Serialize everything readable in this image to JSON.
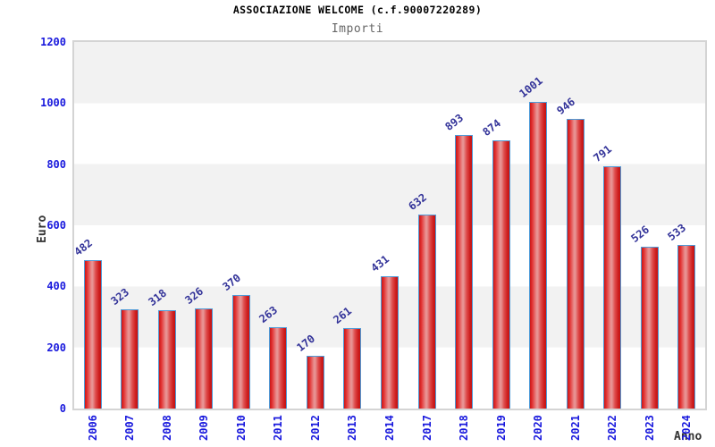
{
  "title": "ASSOCIAZIONE WELCOME (c.f.90007220289)",
  "subtitle": "Importi",
  "chart_data": {
    "type": "bar",
    "title": "ASSOCIAZIONE WELCOME (c.f.90007220289)",
    "subtitle": "Importi",
    "xlabel": "Anno",
    "ylabel": "Euro",
    "categories": [
      "2006",
      "2007",
      "2008",
      "2009",
      "2010",
      "2011",
      "2012",
      "2013",
      "2014",
      "2017",
      "2018",
      "2019",
      "2020",
      "2021",
      "2022",
      "2023",
      "2024"
    ],
    "values": [
      482,
      323,
      318,
      326,
      370,
      263,
      170,
      261,
      431,
      632,
      893,
      874,
      1001,
      946,
      791,
      526,
      533
    ],
    "ylim": [
      0,
      1200
    ],
    "yticks": [
      0,
      200,
      400,
      600,
      800,
      1000,
      1200
    ],
    "grid": "alternating horizontal bands every 200",
    "legend": "none",
    "bar_labels_rotated_degrees": -38,
    "x_tick_labels_rotated_degrees": -90,
    "colors": {
      "bar_fill": "#e23232",
      "bar_fill_highlight": "#e98f8f",
      "bar_border": "#4e9bd8",
      "tick_label": "#1818dd",
      "value_label": "#333399",
      "axis_title": "#333333",
      "title": "#000000",
      "subtitle": "#666666",
      "band_gray": "#f2f2f2",
      "plot_border": "#d4d4d4"
    }
  }
}
